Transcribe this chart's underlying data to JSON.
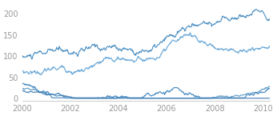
{
  "title": "",
  "xlabel": "",
  "ylabel": "",
  "xlim": [
    2000,
    2010.3
  ],
  "ylim": [
    -5,
    225
  ],
  "xticks": [
    2000,
    2002,
    2004,
    2006,
    2008,
    2010
  ],
  "yticks": [
    0,
    50,
    100,
    150,
    200
  ],
  "line_color1": "#4a8ec2",
  "line_color2": "#5a9fd4",
  "line_color3": "#3a82be",
  "line_color4": "#4a8ec2",
  "line_color5": "#3070a8",
  "background_color": "#ffffff",
  "spine_color": "#cccccc",
  "tick_label_color": "#999999",
  "tick_fontsize": 7,
  "linewidth": 0.85,
  "n_points": 540
}
